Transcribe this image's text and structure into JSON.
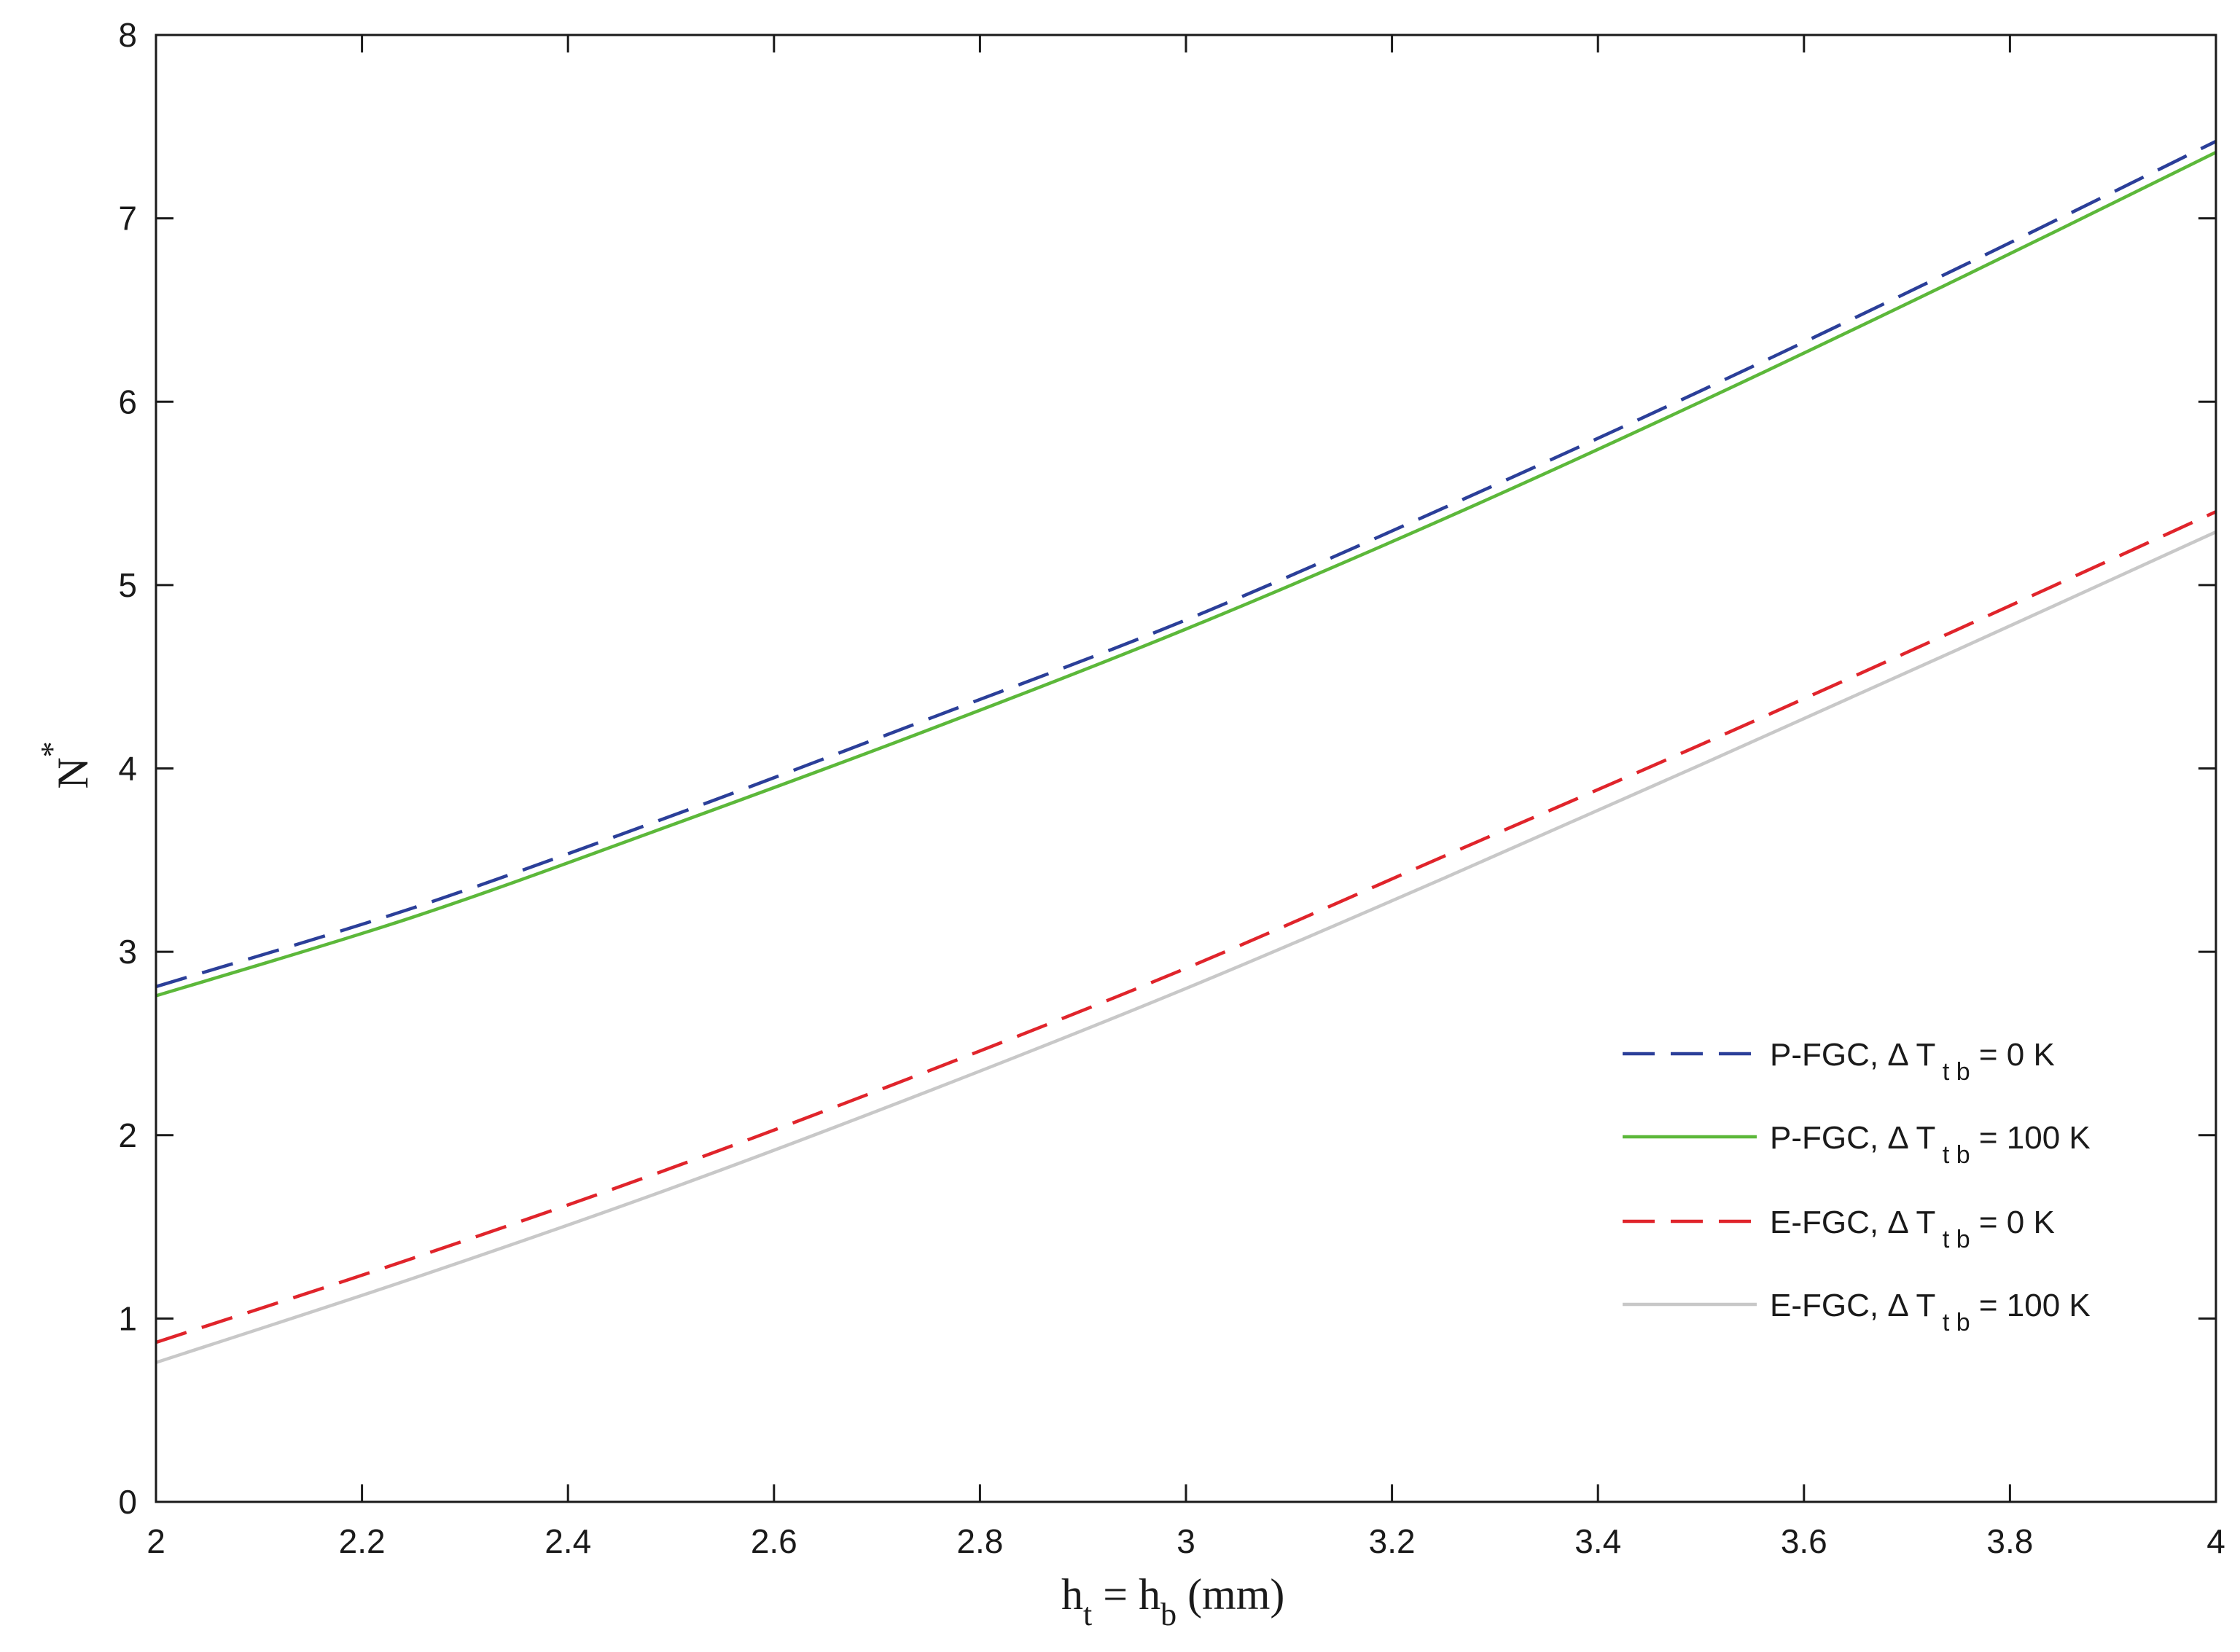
{
  "chart_data": {
    "type": "line",
    "xlabel": {
      "main1": "h",
      "sub1": "t",
      "middle": " = h",
      "sub2": "b",
      "tail": " (mm)"
    },
    "ylabel": {
      "main": "N",
      "sup": "*"
    },
    "xlim": [
      2,
      4
    ],
    "ylim": [
      0,
      8
    ],
    "xticks": [
      2,
      2.2,
      2.4,
      2.6,
      2.8,
      3,
      3.2,
      3.4,
      3.6,
      3.8,
      4
    ],
    "xtick_labels": [
      "2",
      "2.2",
      "2.4",
      "2.6",
      "2.8",
      "3",
      "3.2",
      "3.4",
      "3.6",
      "3.8",
      "4"
    ],
    "yticks": [
      0,
      1,
      2,
      3,
      4,
      5,
      6,
      7,
      8
    ],
    "ytick_labels": [
      "0",
      "1",
      "2",
      "3",
      "4",
      "5",
      "6",
      "7",
      "8"
    ],
    "grid": false,
    "legend_position": "right, middle",
    "x": [
      2,
      2.25,
      2.5,
      2.75,
      3,
      3.25,
      3.5,
      3.75,
      4
    ],
    "series": [
      {
        "label_main": "P-FGC,  Δ T",
        "label_sub": "t b",
        "label_tail": " = 0 K",
        "color": "#2b3f99",
        "dash": true,
        "values": [
          2.81,
          3.24,
          3.74,
          4.27,
          4.81,
          5.42,
          6.06,
          6.73,
          7.42
        ]
      },
      {
        "label_main": "P-FGC,  Δ T",
        "label_sub": "t b",
        "label_tail": " = 100 K",
        "color": "#5cb83a",
        "dash": false,
        "values": [
          2.76,
          3.19,
          3.69,
          4.21,
          4.76,
          5.36,
          6.0,
          6.67,
          7.36
        ]
      },
      {
        "label_main": "E-FGC,  Δ T",
        "label_sub": "t b",
        "label_tail": " = 0 K",
        "color": "#e0242b",
        "dash": true,
        "values": [
          0.87,
          1.33,
          1.82,
          2.35,
          2.91,
          3.52,
          4.13,
          4.76,
          5.4
        ]
      },
      {
        "label_main": "E-FGC,  Δ T",
        "label_sub": "t b",
        "label_tail": " = 100 K",
        "color": "#c8c8c8",
        "dash": false,
        "values": [
          0.76,
          1.22,
          1.71,
          2.24,
          2.8,
          3.4,
          4.02,
          4.65,
          5.29
        ]
      }
    ]
  }
}
